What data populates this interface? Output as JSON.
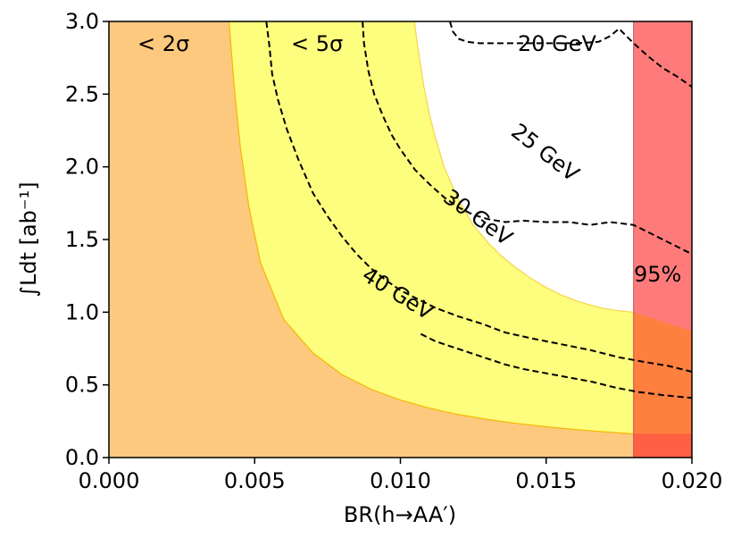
{
  "chart_data": {
    "type": "area",
    "xlabel": "BR(h→AA′)",
    "ylabel": "∫Ldt [ab⁻¹]",
    "xlim": [
      0.0,
      0.02
    ],
    "ylim": [
      0.0,
      3.0
    ],
    "xticks": [
      "0.000",
      "0.005",
      "0.010",
      "0.015",
      "0.020"
    ],
    "xtick_values": [
      0.0,
      0.005,
      0.01,
      0.015,
      0.02
    ],
    "yticks": [
      "0.0",
      "0.5",
      "1.0",
      "1.5",
      "2.0",
      "2.5",
      "3.0"
    ],
    "ytick_values": [
      0.0,
      0.5,
      1.0,
      1.5,
      2.0,
      2.5,
      3.0
    ],
    "grid": false,
    "colors": {
      "two_sigma_fill": "#fcc97f",
      "five_sigma_fill": "#fdfd7e",
      "band_edge": "#f5b800",
      "excluded_fill": "#ff7b7b",
      "overlap_fill": "#ff7f3f",
      "contour": "#000000"
    },
    "regions": [
      {
        "label": "< 2σ",
        "boundary": {
          "x": [
            0.00412,
            0.0043,
            0.0045,
            0.0048,
            0.0052,
            0.006,
            0.007,
            0.008,
            0.009,
            0.01,
            0.011,
            0.012,
            0.013,
            0.014,
            0.015,
            0.016,
            0.017,
            0.018,
            0.019,
            0.02
          ],
          "y": [
            3.0,
            2.55,
            2.15,
            1.73,
            1.34,
            0.95,
            0.72,
            0.57,
            0.47,
            0.395,
            0.34,
            0.295,
            0.262,
            0.235,
            0.212,
            0.193,
            0.177,
            0.163,
            0.151,
            0.141
          ]
        }
      },
      {
        "label": "< 5σ",
        "boundary": {
          "x": [
            0.01048,
            0.0106,
            0.0108,
            0.011,
            0.0112,
            0.0115,
            0.012,
            0.0125,
            0.013,
            0.0135,
            0.014,
            0.0145,
            0.015,
            0.0155,
            0.016,
            0.0165,
            0.017,
            0.0175,
            0.018,
            0.019,
            0.02
          ],
          "y": [
            3.0,
            2.82,
            2.56,
            2.36,
            2.2,
            2.0,
            1.77,
            1.6,
            1.48,
            1.38,
            1.3,
            1.23,
            1.17,
            1.12,
            1.08,
            1.05,
            1.025,
            1.01,
            1.0,
            1.0,
            1.0
          ]
        }
      }
    ],
    "excluded_region": {
      "label": "95%",
      "x_range": [
        0.018,
        0.02
      ]
    },
    "series": [
      {
        "name": "20 GeV",
        "x": [
          0.0117,
          0.0118,
          0.012,
          0.0123,
          0.0127,
          0.0133,
          0.014,
          0.015,
          0.016,
          0.0168,
          0.0172,
          0.0175,
          0.018,
          0.0185,
          0.019,
          0.0195,
          0.02
        ],
        "y": [
          3.0,
          2.93,
          2.88,
          2.86,
          2.85,
          2.85,
          2.85,
          2.85,
          2.85,
          2.86,
          2.9,
          2.95,
          2.85,
          2.76,
          2.68,
          2.62,
          2.55
        ]
      },
      {
        "name": "25 GeV",
        "x": [
          0.0087,
          0.00875,
          0.0089,
          0.0091,
          0.0094,
          0.0097,
          0.01,
          0.0105,
          0.011,
          0.0115,
          0.012,
          0.0125,
          0.013,
          0.0136,
          0.0142,
          0.015,
          0.0158,
          0.0165,
          0.0172,
          0.018,
          0.019,
          0.02
        ],
        "y": [
          3.0,
          2.85,
          2.66,
          2.5,
          2.35,
          2.22,
          2.12,
          1.98,
          1.88,
          1.79,
          1.72,
          1.67,
          1.64,
          1.62,
          1.63,
          1.62,
          1.62,
          1.6,
          1.62,
          1.6,
          1.5,
          1.4
        ]
      },
      {
        "name": "30 GeV",
        "x": [
          0.0054,
          0.0055,
          0.0056,
          0.0058,
          0.0061,
          0.0065,
          0.007,
          0.0075,
          0.008,
          0.0085,
          0.009,
          0.0095,
          0.01,
          0.0106,
          0.0112,
          0.012,
          0.0128,
          0.0136,
          0.0145,
          0.0155,
          0.0165,
          0.0175,
          0.0183,
          0.0192,
          0.02
        ],
        "y": [
          3.0,
          2.84,
          2.64,
          2.46,
          2.26,
          2.05,
          1.82,
          1.66,
          1.52,
          1.4,
          1.3,
          1.22,
          1.15,
          1.09,
          1.03,
          0.97,
          0.92,
          0.86,
          0.82,
          0.78,
          0.74,
          0.69,
          0.66,
          0.63,
          0.59
        ]
      },
      {
        "name": "40 GeV",
        "x": [
          0.0107,
          0.0112,
          0.0118,
          0.0124,
          0.013,
          0.0136,
          0.0142,
          0.015,
          0.0158,
          0.0166,
          0.0174,
          0.0182,
          0.019,
          0.02
        ],
        "y": [
          0.85,
          0.8,
          0.76,
          0.72,
          0.68,
          0.64,
          0.61,
          0.58,
          0.55,
          0.52,
          0.48,
          0.45,
          0.43,
          0.41
        ]
      }
    ]
  }
}
